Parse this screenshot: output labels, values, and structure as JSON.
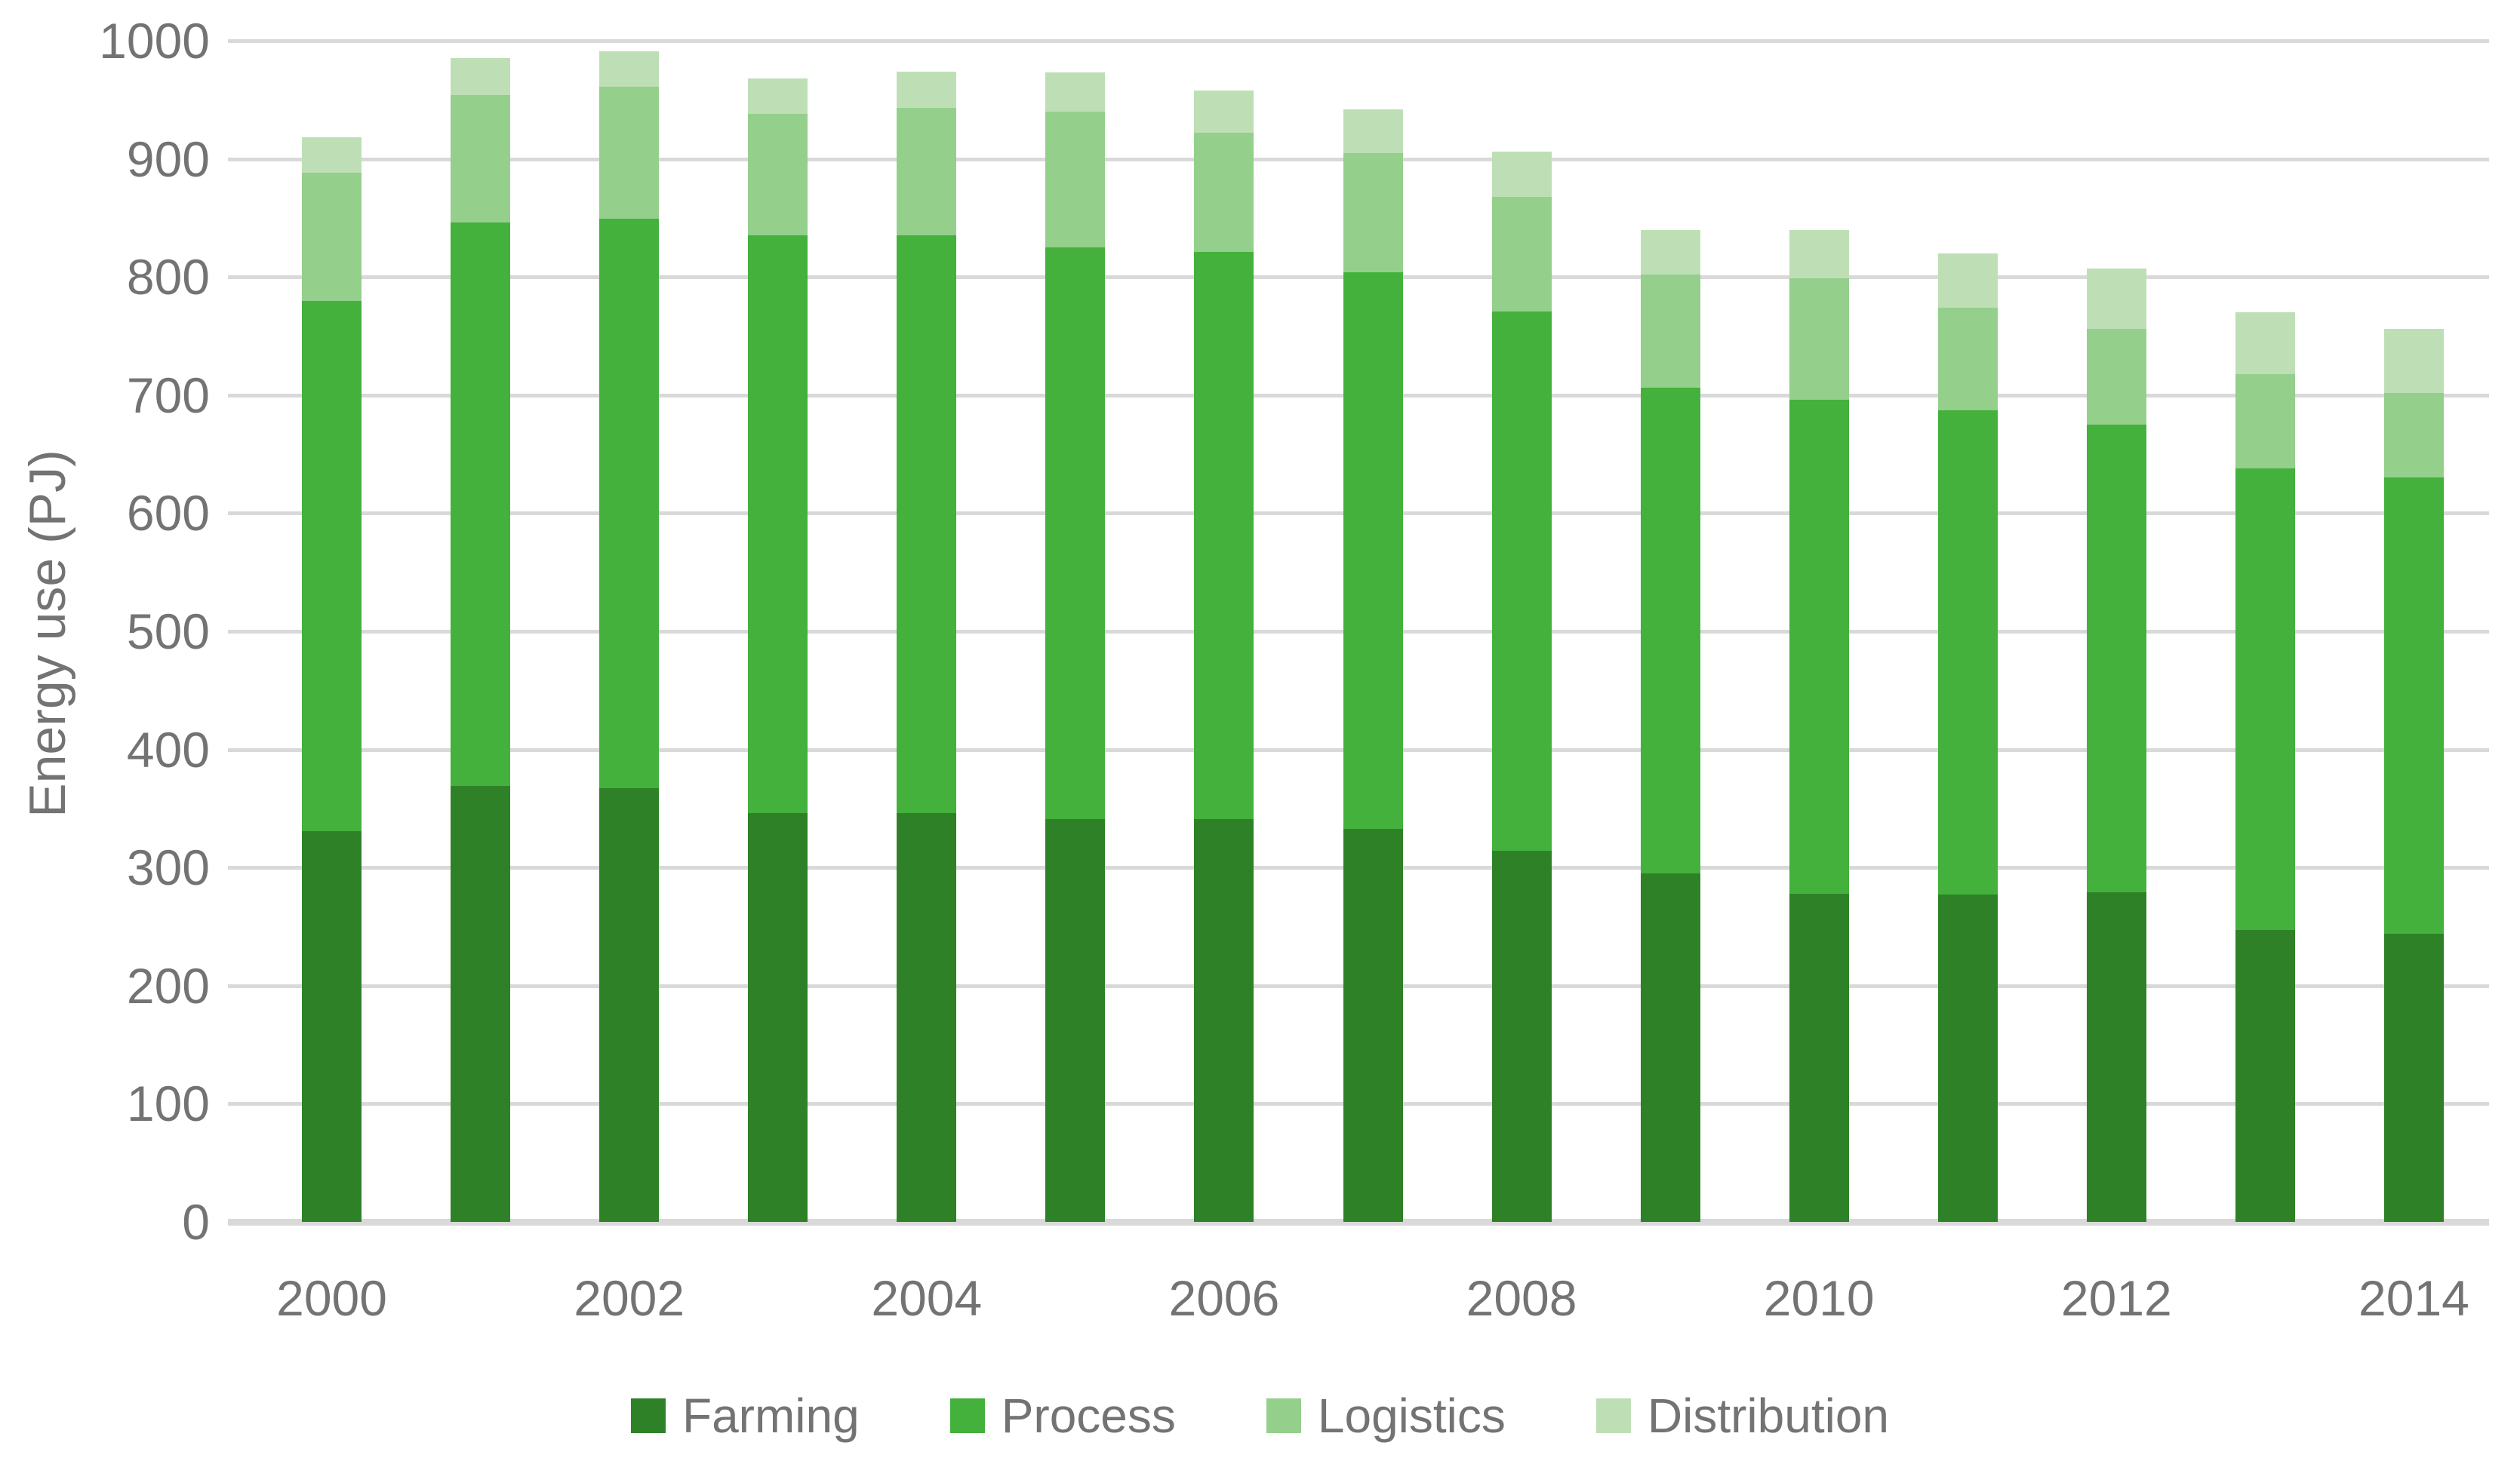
{
  "chart_data": {
    "type": "bar",
    "stacked": true,
    "title": "",
    "xlabel": "",
    "ylabel": "Energy use (PJ)",
    "ylim": [
      0,
      1000
    ],
    "ytick_step": 100,
    "ytick_labels": [
      "0",
      "100",
      "200",
      "300",
      "400",
      "500",
      "600",
      "700",
      "800",
      "900",
      "1000"
    ],
    "categories": [
      2000,
      2001,
      2002,
      2003,
      2004,
      2005,
      2006,
      2007,
      2008,
      2009,
      2010,
      2011,
      2012,
      2013,
      2014
    ],
    "xtick_labels": [
      "2000",
      "2002",
      "2004",
      "2006",
      "2008",
      "2010",
      "2012",
      "2014"
    ],
    "xtick_every": 2,
    "grid": true,
    "legend_position": "bottom",
    "series": [
      {
        "name": "Farming",
        "color": "#2e8127",
        "values": [
          331,
          369,
          367,
          346,
          346,
          341,
          341,
          333,
          314,
          295,
          278,
          277,
          279,
          247,
          244
        ]
      },
      {
        "name": "Process",
        "color": "#43b13c",
        "values": [
          449,
          477,
          482,
          489,
          489,
          484,
          480,
          471,
          457,
          411,
          418,
          410,
          396,
          391,
          386
        ]
      },
      {
        "name": "Logistics",
        "color": "#94cf8b",
        "values": [
          108,
          108,
          112,
          103,
          108,
          115,
          101,
          101,
          97,
          96,
          103,
          87,
          81,
          80,
          72
        ]
      },
      {
        "name": "Distribution",
        "color": "#bedfb6",
        "values": [
          30,
          31,
          30,
          30,
          31,
          33,
          36,
          37,
          38,
          38,
          41,
          46,
          51,
          52,
          54
        ]
      }
    ],
    "totals": [
      918,
      985,
      991,
      968,
      974,
      973,
      958,
      942,
      906,
      840,
      840,
      820,
      807,
      770,
      756
    ],
    "colors": {
      "gridline": "#d9d9d9",
      "axis_line": "#d9d9d9",
      "text": "#737373",
      "background": "#ffffff"
    }
  }
}
